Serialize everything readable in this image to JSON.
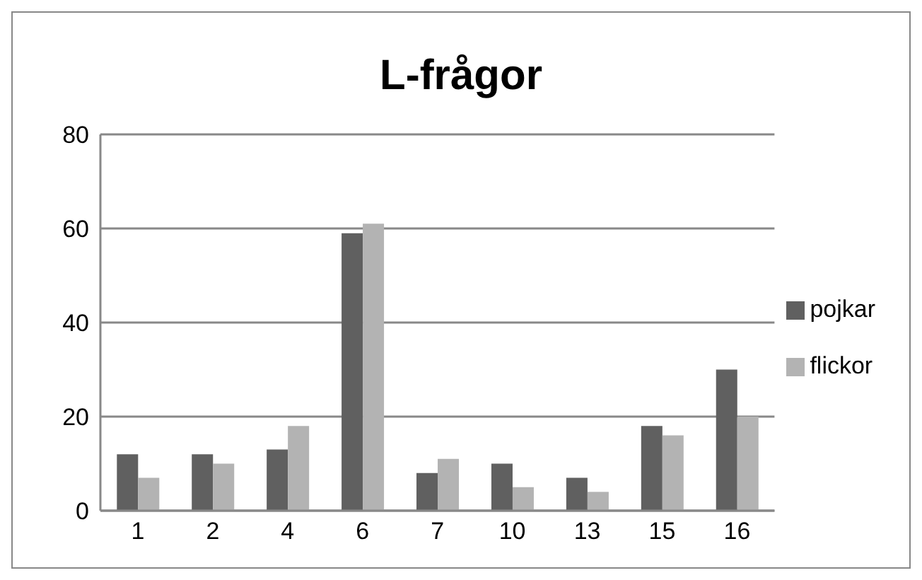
{
  "chart_data": {
    "type": "bar",
    "title": "L-frågor",
    "categories": [
      "1",
      "2",
      "4",
      "6",
      "7",
      "10",
      "13",
      "15",
      "16"
    ],
    "series": [
      {
        "name": "pojkar",
        "color": "#606060",
        "values": [
          12,
          12,
          13,
          59,
          8,
          10,
          7,
          18,
          30
        ]
      },
      {
        "name": "flickor",
        "color": "#b3b3b3",
        "values": [
          7,
          10,
          18,
          61,
          11,
          5,
          4,
          16,
          20
        ]
      }
    ],
    "ylim": [
      0,
      80
    ],
    "yticks": [
      0,
      20,
      40,
      60,
      80
    ],
    "grid": "y",
    "legend": "right"
  }
}
